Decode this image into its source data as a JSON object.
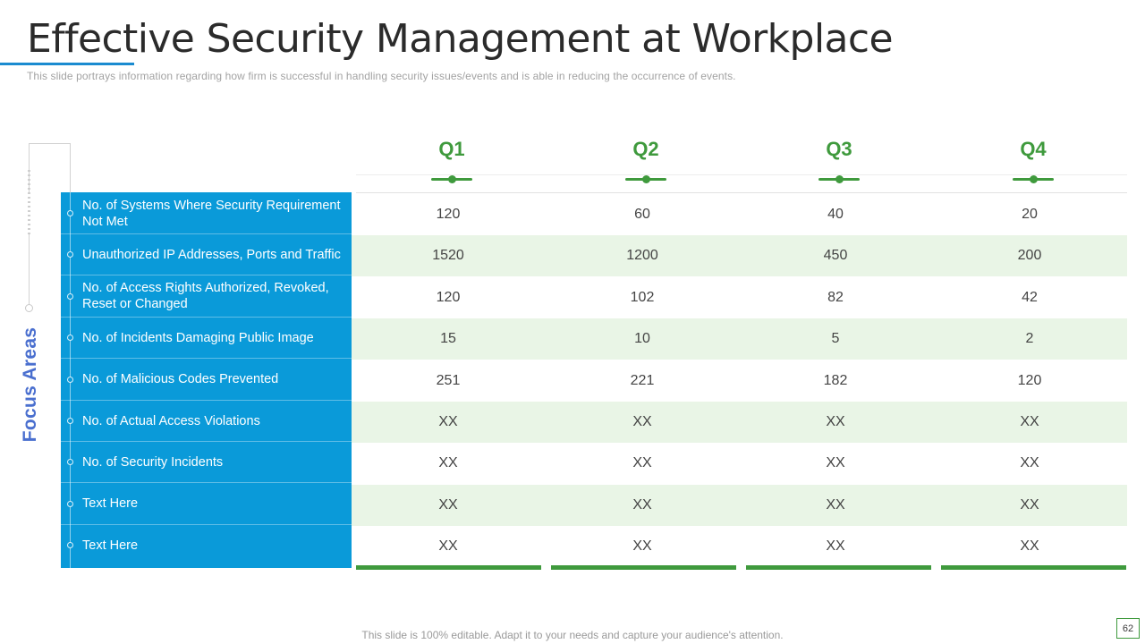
{
  "slide": {
    "title": "Effective Security Management at Workplace",
    "subtitle": "This slide portrays information  regarding how firm is successful in handling security issues/events and is able in reducing the occurrence of events.",
    "focus_label": "Focus Areas",
    "footer": "This slide is 100% editable. Adapt it to your needs and capture your audience's attention.",
    "page_number": "62"
  },
  "colors": {
    "accent_blue": "#0a9ad9",
    "accent_green": "#3f9a3d",
    "focus_label": "#4a6fcf",
    "alt_row": "#e9f5e6"
  },
  "table": {
    "quarters": [
      "Q1",
      "Q2",
      "Q3",
      "Q4"
    ],
    "rows": [
      {
        "label": "No. of Systems Where Security Requirement Not Met",
        "values": [
          "120",
          "60",
          "40",
          "20"
        ]
      },
      {
        "label": "Unauthorized IP Addresses, Ports and Traffic",
        "values": [
          "1520",
          "1200",
          "450",
          "200"
        ]
      },
      {
        "label": "No. of Access Rights Authorized, Revoked, Reset or Changed",
        "values": [
          "120",
          "102",
          "82",
          "42"
        ]
      },
      {
        "label": "No. of Incidents Damaging Public Image",
        "values": [
          "15",
          "10",
          "5",
          "2"
        ]
      },
      {
        "label": "No. of Malicious Codes Prevented",
        "values": [
          "251",
          "221",
          "182",
          "120"
        ]
      },
      {
        "label": "No. of Actual Access  Violations",
        "values": [
          "XX",
          "XX",
          "XX",
          "XX"
        ]
      },
      {
        "label": "No. of Security Incidents",
        "values": [
          "XX",
          "XX",
          "XX",
          "XX"
        ]
      },
      {
        "label": "Text Here",
        "values": [
          "XX",
          "XX",
          "XX",
          "XX"
        ]
      },
      {
        "label": "Text Here",
        "values": [
          "XX",
          "XX",
          "XX",
          "XX"
        ]
      }
    ]
  }
}
